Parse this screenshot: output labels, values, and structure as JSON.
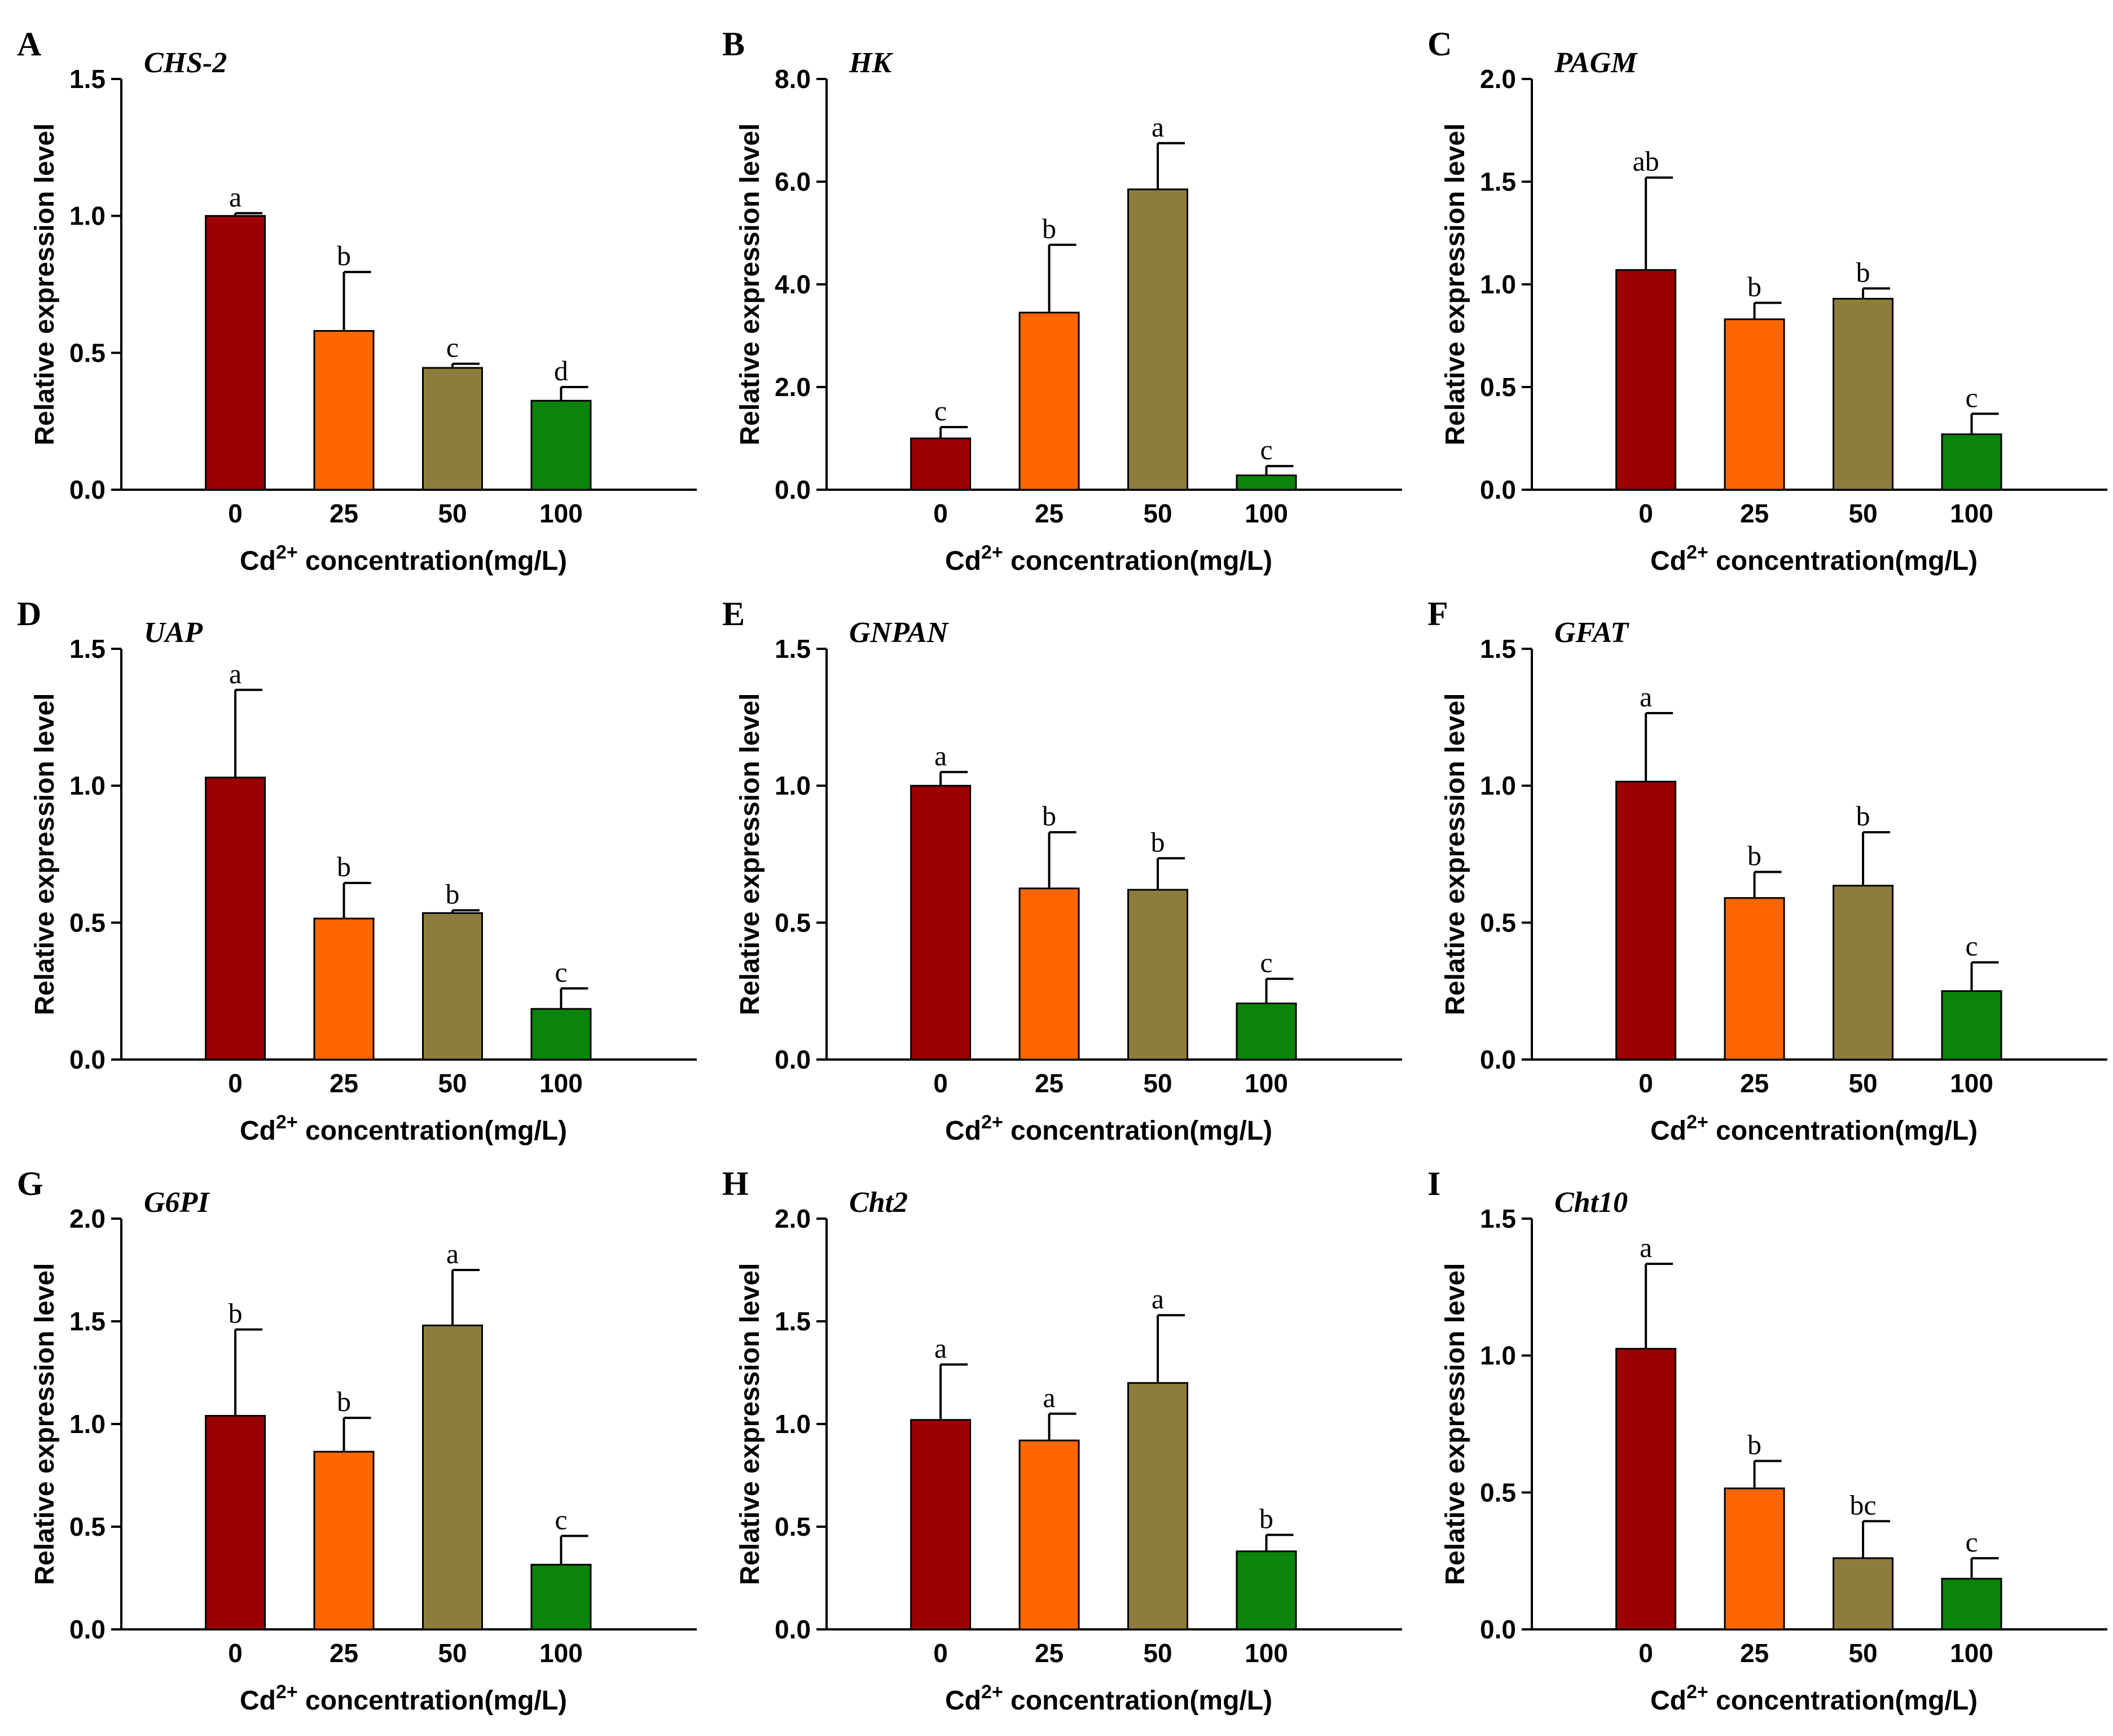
{
  "colors": {
    "bar_colors": [
      "#9b0000",
      "#ff6600",
      "#8c7d3e",
      "#0a840a"
    ],
    "axis": "#000000",
    "background": "#ffffff"
  },
  "chart_data": [
    {
      "panel": "A",
      "type": "bar",
      "title": "CHS-2",
      "categories": [
        "0",
        "25",
        "50",
        "100"
      ],
      "values": [
        1.0,
        0.58,
        0.445,
        0.325
      ],
      "errors": [
        0.01,
        0.215,
        0.015,
        0.05
      ],
      "sig_letters": [
        "a",
        "b",
        "c",
        "d"
      ],
      "ylabel": "Relative expression level",
      "xlabel_prefix": "Cd",
      "xlabel_sup": "2+",
      "xlabel_suffix": " concentration(mg/L)",
      "ylim": [
        0,
        1.5
      ],
      "yticks": [
        "0.0",
        "0.5",
        "1.0",
        "1.5"
      ]
    },
    {
      "panel": "B",
      "type": "bar",
      "title": "HK",
      "categories": [
        "0",
        "25",
        "50",
        "100"
      ],
      "values": [
        1.0,
        3.45,
        5.85,
        0.28
      ],
      "errors": [
        0.22,
        1.32,
        0.9,
        0.18
      ],
      "sig_letters": [
        "c",
        "b",
        "a",
        "c"
      ],
      "ylabel": "Relative expression level",
      "xlabel_prefix": "Cd",
      "xlabel_sup": "2+",
      "xlabel_suffix": " concentration(mg/L)",
      "ylim": [
        0,
        8
      ],
      "yticks": [
        "0.0",
        "2.0",
        "4.0",
        "6.0",
        "8.0"
      ]
    },
    {
      "panel": "C",
      "type": "bar",
      "title": "PAGM",
      "categories": [
        "0",
        "25",
        "50",
        "100"
      ],
      "values": [
        1.07,
        0.83,
        0.93,
        0.27
      ],
      "errors": [
        0.45,
        0.08,
        0.05,
        0.1
      ],
      "sig_letters": [
        "ab",
        "b",
        "b",
        "c"
      ],
      "ylabel": "Relative expression level",
      "xlabel_prefix": "Cd",
      "xlabel_sup": "2+",
      "xlabel_suffix": " concentration(mg/L)",
      "ylim": [
        0,
        2.0
      ],
      "yticks": [
        "0.0",
        "0.5",
        "1.0",
        "1.5",
        "2.0"
      ]
    },
    {
      "panel": "D",
      "type": "bar",
      "title": "UAP",
      "categories": [
        "0",
        "25",
        "50",
        "100"
      ],
      "values": [
        1.03,
        0.515,
        0.535,
        0.185
      ],
      "errors": [
        0.32,
        0.13,
        0.01,
        0.075
      ],
      "sig_letters": [
        "a",
        "b",
        "b",
        "c"
      ],
      "ylabel": "Relative expression level",
      "xlabel_prefix": "Cd",
      "xlabel_sup": "2+",
      "xlabel_suffix": " concentration(mg/L)",
      "ylim": [
        0,
        1.5
      ],
      "yticks": [
        "0.0",
        "0.5",
        "1.0",
        "1.5"
      ]
    },
    {
      "panel": "E",
      "type": "bar",
      "title": "GNPAN",
      "categories": [
        "0",
        "25",
        "50",
        "100"
      ],
      "values": [
        1.0,
        0.625,
        0.62,
        0.205
      ],
      "errors": [
        0.05,
        0.205,
        0.115,
        0.09
      ],
      "sig_letters": [
        "a",
        "b",
        "b",
        "c"
      ],
      "ylabel": "Relative expression level",
      "xlabel_prefix": "Cd",
      "xlabel_sup": "2+",
      "xlabel_suffix": " concentration(mg/L)",
      "ylim": [
        0,
        1.5
      ],
      "yticks": [
        "0.0",
        "0.5",
        "1.0",
        "1.5"
      ]
    },
    {
      "panel": "F",
      "type": "bar",
      "title": "GFAT",
      "categories": [
        "0",
        "25",
        "50",
        "100"
      ],
      "values": [
        1.015,
        0.59,
        0.635,
        0.25
      ],
      "errors": [
        0.25,
        0.095,
        0.195,
        0.105
      ],
      "sig_letters": [
        "a",
        "b",
        "b",
        "c"
      ],
      "ylabel": "Relative expression level",
      "xlabel_prefix": "Cd",
      "xlabel_sup": "2+",
      "xlabel_suffix": " concentration(mg/L)",
      "ylim": [
        0,
        1.5
      ],
      "yticks": [
        "0.0",
        "0.5",
        "1.0",
        "1.5"
      ]
    },
    {
      "panel": "G",
      "type": "bar",
      "title": "G6PI",
      "categories": [
        "0",
        "25",
        "50",
        "100"
      ],
      "values": [
        1.04,
        0.865,
        1.48,
        0.315
      ],
      "errors": [
        0.42,
        0.165,
        0.27,
        0.14
      ],
      "sig_letters": [
        "b",
        "b",
        "a",
        "c"
      ],
      "ylabel": "Relative expression level",
      "xlabel_prefix": "Cd",
      "xlabel_sup": "2+",
      "xlabel_suffix": " concentration(mg/L)",
      "ylim": [
        0,
        2.0
      ],
      "yticks": [
        "0.0",
        "0.5",
        "1.0",
        "1.5",
        "2.0"
      ]
    },
    {
      "panel": "H",
      "type": "bar",
      "title": "Cht2",
      "categories": [
        "0",
        "25",
        "50",
        "100"
      ],
      "values": [
        1.02,
        0.92,
        1.2,
        0.38
      ],
      "errors": [
        0.27,
        0.13,
        0.33,
        0.08
      ],
      "sig_letters": [
        "a",
        "a",
        "a",
        "b"
      ],
      "ylabel": "Relative expression level",
      "xlabel_prefix": "Cd",
      "xlabel_sup": "2+",
      "xlabel_suffix": " concentration(mg/L)",
      "ylim": [
        0,
        2.0
      ],
      "yticks": [
        "0.0",
        "0.5",
        "1.0",
        "1.5",
        "2.0"
      ]
    },
    {
      "panel": "I",
      "type": "bar",
      "title": "Cht10",
      "categories": [
        "0",
        "25",
        "50",
        "100"
      ],
      "values": [
        1.025,
        0.515,
        0.26,
        0.185
      ],
      "errors": [
        0.31,
        0.1,
        0.135,
        0.075
      ],
      "sig_letters": [
        "a",
        "b",
        "bc",
        "c"
      ],
      "ylabel": "Relative expression level",
      "xlabel_prefix": "Cd",
      "xlabel_sup": "2+",
      "xlabel_suffix": " concentration(mg/L)",
      "ylim": [
        0,
        1.5
      ],
      "yticks": [
        "0.0",
        "0.5",
        "1.0",
        "1.5"
      ]
    }
  ]
}
